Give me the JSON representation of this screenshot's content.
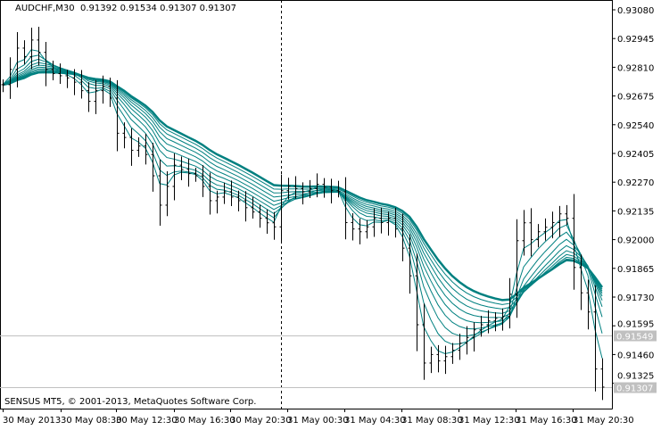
{
  "header": {
    "symbol_timeframe": "AUDCHF,M30",
    "open": "0.91392",
    "high": "0.91534",
    "low": "0.91307",
    "close": "0.91307"
  },
  "footer": {
    "copyright": "SENSUS MT5, © 2001-2013, MetaQuotes Software Corp."
  },
  "colors": {
    "bars": "#000000",
    "moving_averages": "#008080",
    "price_lines": "#c0c0c0"
  },
  "chart_data": {
    "type": "line",
    "title": "AUDCHF,M30",
    "ylim": [
      0.9126,
      0.9311
    ],
    "y_ticks": [
      "0.93080",
      "0.92945",
      "0.92810",
      "0.92675",
      "0.92540",
      "0.92405",
      "0.92270",
      "0.92135",
      "0.92000",
      "0.91865",
      "0.91730",
      "0.91595",
      "0.91460",
      "0.91325"
    ],
    "x_ticks": [
      "30 May 2013",
      "30 May 08:30",
      "30 May 12:30",
      "30 May 16:30",
      "30 May 20:30",
      "31 May 00:30",
      "31 May 04:30",
      "31 May 08:30",
      "31 May 12:30",
      "31 May 16:30",
      "31 May 20:30"
    ],
    "price_lines": [
      {
        "label": "0.91549",
        "value": 0.91549
      },
      {
        "label": "0.91307",
        "value": 0.91307
      }
    ],
    "period_separator": "31 May 00:00",
    "grid": false,
    "closes": [
      0.92728,
      0.928,
      0.929,
      0.9286,
      0.92938,
      0.9288,
      0.928,
      0.9278,
      0.9277,
      0.9276,
      0.9274,
      0.927,
      0.9265,
      0.927,
      0.9272,
      0.92665,
      0.925,
      0.9248,
      0.9242,
      0.9244,
      0.924,
      0.923,
      0.92162,
      0.9225,
      0.9235,
      0.9233,
      0.9231,
      0.923,
      0.9225,
      0.92183,
      0.922,
      0.92225,
      0.922,
      0.92183,
      0.9215,
      0.9213,
      0.921,
      0.92079,
      0.9206,
      0.9223,
      0.9225,
      0.9224,
      0.92225,
      0.9224,
      0.9226,
      0.92246,
      0.9223,
      0.92225,
      0.9208,
      0.9205,
      0.92037,
      0.9206,
      0.921,
      0.9208,
      0.921,
      0.9205,
      0.9196,
      0.9183,
      0.916,
      0.9142,
      0.9146,
      0.9143,
      0.9145,
      0.9148,
      0.91513,
      0.9154,
      0.91576,
      0.916,
      0.91618,
      0.9163,
      0.91639,
      0.91743,
      0.91995,
      0.92079,
      0.92,
      0.92037,
      0.92058,
      0.9208,
      0.92121,
      0.921,
      0.91869,
      0.9175,
      0.9166,
      0.91392,
      0.91307
    ]
  }
}
